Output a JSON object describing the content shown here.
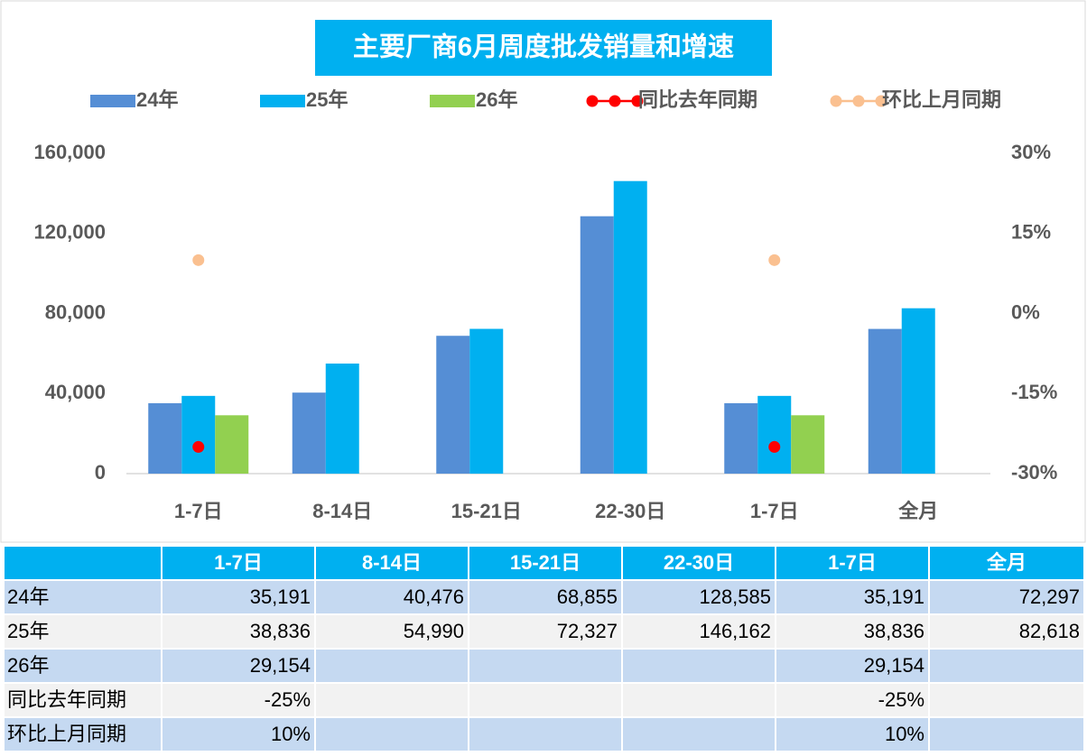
{
  "chart_data": {
    "type": "bar",
    "title": "主要厂商6月周度批发销量和增速",
    "categories": [
      "1-7日",
      "8-14日",
      "15-21日",
      "22-30日",
      "1-7日",
      "全月"
    ],
    "series": [
      {
        "name": "24年",
        "color": "#558ed5",
        "type": "bar",
        "values": [
          35191,
          40476,
          68855,
          128585,
          35191,
          72297
        ],
        "value_labels": [
          "35,191",
          "40,476",
          "68,855",
          "128,585",
          "35,191",
          "72,297"
        ]
      },
      {
        "name": "25年",
        "color": "#00b0f0",
        "type": "bar",
        "values": [
          38836,
          54990,
          72327,
          146162,
          38836,
          82618
        ],
        "value_labels": [
          "38,836",
          "54,990",
          "72,327",
          "146,162",
          "38,836",
          "82,618"
        ]
      },
      {
        "name": "26年",
        "color": "#92d050",
        "type": "bar",
        "values": [
          29154,
          null,
          null,
          null,
          29154,
          null
        ],
        "value_labels": [
          "29,154",
          null,
          null,
          null,
          "29,154",
          null
        ]
      },
      {
        "name": "同比去年同期",
        "color": "#ff0000",
        "type": "line",
        "axis": "y2",
        "values": [
          -25,
          null,
          null,
          null,
          -25,
          null
        ],
        "value_labels": [
          "-25%",
          null,
          null,
          null,
          "-25%",
          null
        ]
      },
      {
        "name": "环比上月同期",
        "color": "#fac090",
        "type": "line",
        "axis": "y2",
        "values": [
          10,
          null,
          null,
          null,
          10,
          null
        ],
        "value_labels": [
          "10%",
          null,
          null,
          null,
          "10%",
          null
        ]
      }
    ],
    "ylim": [
      0,
      160000
    ],
    "yticks": [
      0,
      {
        "value": 40000,
        "label": "40,000"
      },
      {
        "value": 80000,
        "label": "80,000"
      },
      {
        "value": 120000,
        "label": "120,000"
      },
      {
        "value": 160000,
        "label": "160,000"
      }
    ],
    "y2lim": [
      -30,
      30
    ],
    "y2ticks": [
      {
        "value": -30,
        "label": "-30%"
      },
      {
        "value": -15,
        "label": "-15%"
      },
      {
        "value": 0,
        "label": "0%"
      },
      {
        "value": 15,
        "label": "15%"
      },
      {
        "value": 30,
        "label": "30%"
      }
    ],
    "legend": "top",
    "grid": false
  }
}
